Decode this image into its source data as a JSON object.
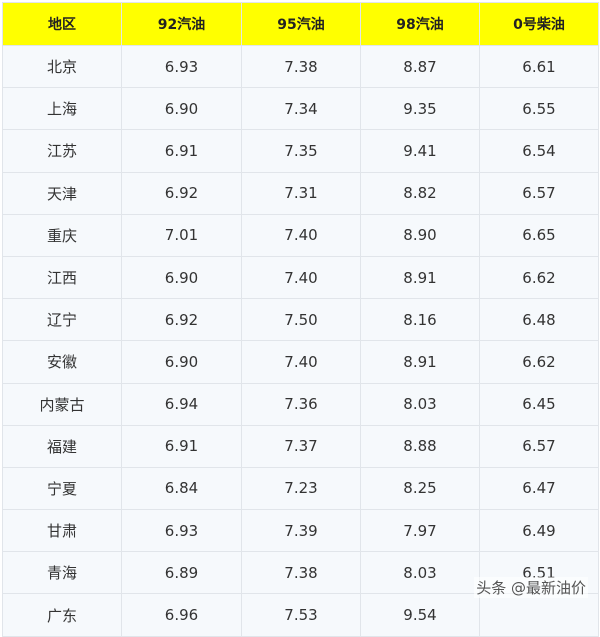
{
  "table": {
    "headers": [
      "地区",
      "92汽油",
      "95汽油",
      "98汽油",
      "0号柴油"
    ],
    "rows": [
      [
        "北京",
        "6.93",
        "7.38",
        "8.87",
        "6.61"
      ],
      [
        "上海",
        "6.90",
        "7.34",
        "9.35",
        "6.55"
      ],
      [
        "江苏",
        "6.91",
        "7.35",
        "9.41",
        "6.54"
      ],
      [
        "天津",
        "6.92",
        "7.31",
        "8.82",
        "6.57"
      ],
      [
        "重庆",
        "7.01",
        "7.40",
        "8.90",
        "6.65"
      ],
      [
        "江西",
        "6.90",
        "7.40",
        "8.91",
        "6.62"
      ],
      [
        "辽宁",
        "6.92",
        "7.50",
        "8.16",
        "6.48"
      ],
      [
        "安徽",
        "6.90",
        "7.40",
        "8.91",
        "6.62"
      ],
      [
        "内蒙古",
        "6.94",
        "7.36",
        "8.03",
        "6.45"
      ],
      [
        "福建",
        "6.91",
        "7.37",
        "8.88",
        "6.57"
      ],
      [
        "宁夏",
        "6.84",
        "7.23",
        "8.25",
        "6.47"
      ],
      [
        "甘肃",
        "6.93",
        "7.39",
        "7.97",
        "6.49"
      ],
      [
        "青海",
        "6.89",
        "7.38",
        "8.03",
        "6.51"
      ],
      [
        "广东",
        "6.96",
        "7.53",
        "9.54",
        ""
      ]
    ]
  },
  "watermark": "头条 @最新油价",
  "colors": {
    "header_bg": "#ffff00",
    "row_bg": "#f6f9fc",
    "border": "#e1e5ea"
  }
}
